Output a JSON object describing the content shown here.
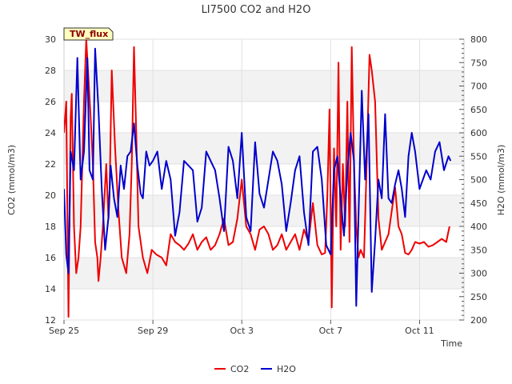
{
  "chart_data": {
    "type": "line",
    "title": "LI7500 CO2 and H2O",
    "badge": "TW_flux",
    "xlabel": "Time",
    "ylabel_left": "CO2 (mmol/m3)",
    "ylabel_right": "H2O (mmol/m3)",
    "xlim": [
      0,
      18
    ],
    "ylim_left": [
      12,
      30
    ],
    "ylim_right": [
      200,
      800
    ],
    "x_ticks": [
      {
        "day": 0,
        "label": "Sep 25"
      },
      {
        "day": 4,
        "label": "Sep 29"
      },
      {
        "day": 8,
        "label": "Oct 3"
      },
      {
        "day": 12,
        "label": "Oct 7"
      },
      {
        "day": 16,
        "label": "Oct 11"
      }
    ],
    "y_ticks_left": [
      "12",
      "14",
      "16",
      "18",
      "20",
      "22",
      "24",
      "26",
      "28",
      "30"
    ],
    "y_ticks_right": [
      "200",
      "250",
      "300",
      "350",
      "400",
      "450",
      "500",
      "550",
      "600",
      "650",
      "700",
      "750",
      "800"
    ],
    "legend": {
      "position": "bottom-center"
    },
    "colors": {
      "co2": "#ee0000",
      "h2o": "#0000cc",
      "band": "#f2f2f2",
      "badge_bg": "#ffffc0"
    },
    "series": [
      {
        "name": "CO2",
        "axis": "left",
        "x": [
          0.0,
          0.1,
          0.2,
          0.3,
          0.35,
          0.45,
          0.55,
          0.65,
          0.75,
          0.9,
          1.0,
          1.2,
          1.3,
          1.4,
          1.5,
          1.55,
          1.65,
          1.75,
          1.9,
          2.0,
          2.05,
          2.15,
          2.3,
          2.45,
          2.6,
          2.8,
          2.95,
          3.05,
          3.15,
          3.25,
          3.35,
          3.55,
          3.75,
          3.95,
          4.15,
          4.4,
          4.6,
          4.8,
          5.0,
          5.2,
          5.4,
          5.6,
          5.8,
          6.0,
          6.2,
          6.4,
          6.6,
          6.8,
          7.0,
          7.2,
          7.4,
          7.6,
          7.8,
          8.0,
          8.2,
          8.4,
          8.6,
          8.8,
          9.0,
          9.2,
          9.4,
          9.6,
          9.8,
          10.0,
          10.2,
          10.4,
          10.6,
          10.8,
          11.0,
          11.2,
          11.4,
          11.6,
          11.75,
          11.85,
          11.95,
          12.05,
          12.15,
          12.25,
          12.35,
          12.45,
          12.55,
          12.65,
          12.75,
          12.85,
          12.95,
          13.05,
          13.15,
          13.25,
          13.35,
          13.5,
          13.6,
          13.75,
          13.85,
          14.0,
          14.15,
          14.3,
          14.45,
          14.6,
          14.75,
          14.9,
          15.05,
          15.2,
          15.35,
          15.5,
          15.65,
          15.8,
          16.0,
          16.2,
          16.4,
          16.6,
          16.8,
          17.0,
          17.2,
          17.35
        ],
        "values": [
          24.0,
          26.0,
          12.2,
          25.0,
          26.5,
          18.0,
          15.0,
          16.0,
          18.0,
          26.0,
          30.0,
          25.0,
          22.0,
          17.0,
          16.0,
          14.5,
          16.0,
          18.0,
          22.0,
          18.5,
          20.0,
          28.0,
          23.0,
          19.0,
          16.0,
          15.0,
          17.5,
          22.0,
          29.5,
          24.0,
          18.0,
          16.0,
          15.0,
          16.5,
          16.2,
          16.0,
          15.5,
          17.5,
          17.0,
          16.8,
          16.5,
          16.9,
          17.5,
          16.5,
          17.0,
          17.3,
          16.5,
          16.8,
          17.5,
          18.5,
          16.8,
          17.0,
          18.5,
          21.0,
          18.0,
          17.5,
          16.5,
          17.8,
          18.0,
          17.5,
          16.5,
          16.8,
          17.5,
          16.5,
          17.0,
          17.5,
          16.5,
          17.8,
          17.0,
          19.5,
          16.8,
          16.2,
          16.3,
          20.0,
          25.5,
          12.8,
          23.0,
          18.0,
          28.5,
          16.5,
          22.0,
          18.0,
          26.0,
          17.0,
          29.5,
          22.0,
          18.0,
          16.0,
          16.5,
          16.0,
          21.0,
          29.0,
          28.0,
          26.0,
          18.5,
          16.5,
          17.0,
          17.5,
          19.0,
          20.5,
          18.0,
          17.5,
          16.3,
          16.2,
          16.5,
          17.0,
          16.9,
          17.0,
          16.7,
          16.8,
          17.0,
          17.2,
          17.0,
          18.0
        ]
      },
      {
        "name": "H2O",
        "axis": "right",
        "x": [
          0.0,
          0.1,
          0.2,
          0.3,
          0.45,
          0.6,
          0.75,
          0.9,
          1.05,
          1.15,
          1.3,
          1.4,
          1.55,
          1.7,
          1.85,
          2.0,
          2.1,
          2.25,
          2.4,
          2.55,
          2.7,
          2.85,
          3.0,
          3.15,
          3.3,
          3.45,
          3.55,
          3.7,
          3.85,
          4.0,
          4.2,
          4.4,
          4.6,
          4.8,
          5.0,
          5.2,
          5.4,
          5.6,
          5.8,
          6.0,
          6.2,
          6.4,
          6.6,
          6.8,
          7.0,
          7.2,
          7.4,
          7.6,
          7.8,
          8.0,
          8.2,
          8.4,
          8.6,
          8.8,
          9.0,
          9.2,
          9.4,
          9.6,
          9.8,
          10.0,
          10.2,
          10.4,
          10.6,
          10.8,
          11.0,
          11.2,
          11.4,
          11.6,
          11.8,
          12.0,
          12.15,
          12.3,
          12.45,
          12.6,
          12.75,
          12.9,
          13.05,
          13.15,
          13.25,
          13.4,
          13.55,
          13.7,
          13.85,
          14.0,
          14.15,
          14.3,
          14.45,
          14.6,
          14.75,
          14.9,
          15.05,
          15.2,
          15.35,
          15.5,
          15.65,
          15.8,
          16.0,
          16.15,
          16.3,
          16.5,
          16.7,
          16.9,
          17.1,
          17.3,
          17.4
        ],
        "values": [
          480,
          340,
          300,
          560,
          520,
          760,
          500,
          560,
          760,
          520,
          500,
          780,
          650,
          480,
          350,
          420,
          530,
          460,
          420,
          530,
          480,
          550,
          560,
          620,
          530,
          470,
          460,
          560,
          530,
          540,
          560,
          480,
          540,
          500,
          380,
          430,
          540,
          530,
          520,
          410,
          440,
          560,
          540,
          520,
          460,
          390,
          570,
          540,
          460,
          600,
          420,
          390,
          580,
          470,
          440,
          500,
          560,
          540,
          490,
          390,
          450,
          520,
          550,
          430,
          360,
          560,
          570,
          500,
          360,
          340,
          520,
          550,
          460,
          380,
          520,
          600,
          540,
          230,
          420,
          690,
          500,
          640,
          260,
          370,
          500,
          460,
          640,
          460,
          450,
          490,
          520,
          480,
          420,
          550,
          600,
          560,
          480,
          500,
          520,
          500,
          560,
          580,
          520,
          550,
          540
        ]
      }
    ]
  }
}
